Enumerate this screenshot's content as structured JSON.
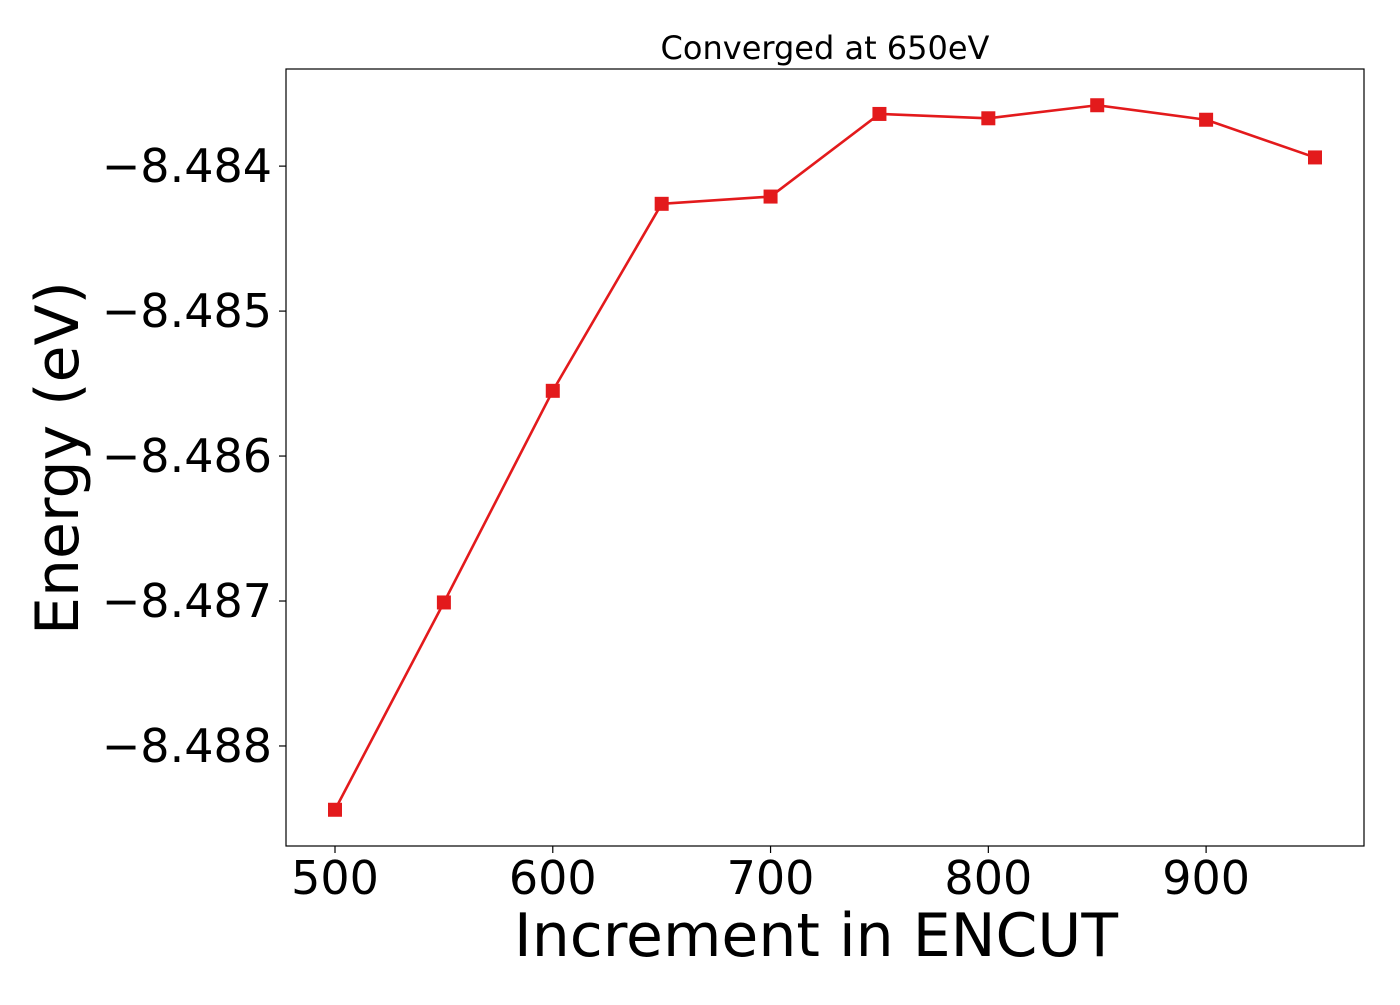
{
  "chart_data": {
    "type": "line",
    "title": "Converged at 650eV",
    "xlabel": "Increment in ENCUT",
    "ylabel": "Energy (eV)",
    "x": [
      500,
      550,
      600,
      650,
      700,
      750,
      800,
      850,
      900,
      950
    ],
    "series": [
      {
        "values": [
          -8.48844,
          -8.48701,
          -8.48555,
          -8.48426,
          -8.48421,
          -8.48364,
          -8.48367,
          -8.48358,
          -8.48368,
          -8.48394
        ],
        "color": "#e31a1c",
        "marker": "square"
      }
    ],
    "xlim": [
      477.5,
      972.5
    ],
    "ylim": [
      -8.48869,
      -8.48333
    ],
    "xticks": [
      500,
      600,
      700,
      800,
      900
    ],
    "xtick_labels": [
      "500",
      "600",
      "700",
      "800",
      "900"
    ],
    "yticks": [
      -8.484,
      -8.485,
      -8.486,
      -8.487,
      -8.488
    ],
    "ytick_labels": [
      "−8.484",
      "−8.485",
      "−8.486",
      "−8.487",
      "−8.488"
    ],
    "grid": false,
    "legend": "none"
  }
}
